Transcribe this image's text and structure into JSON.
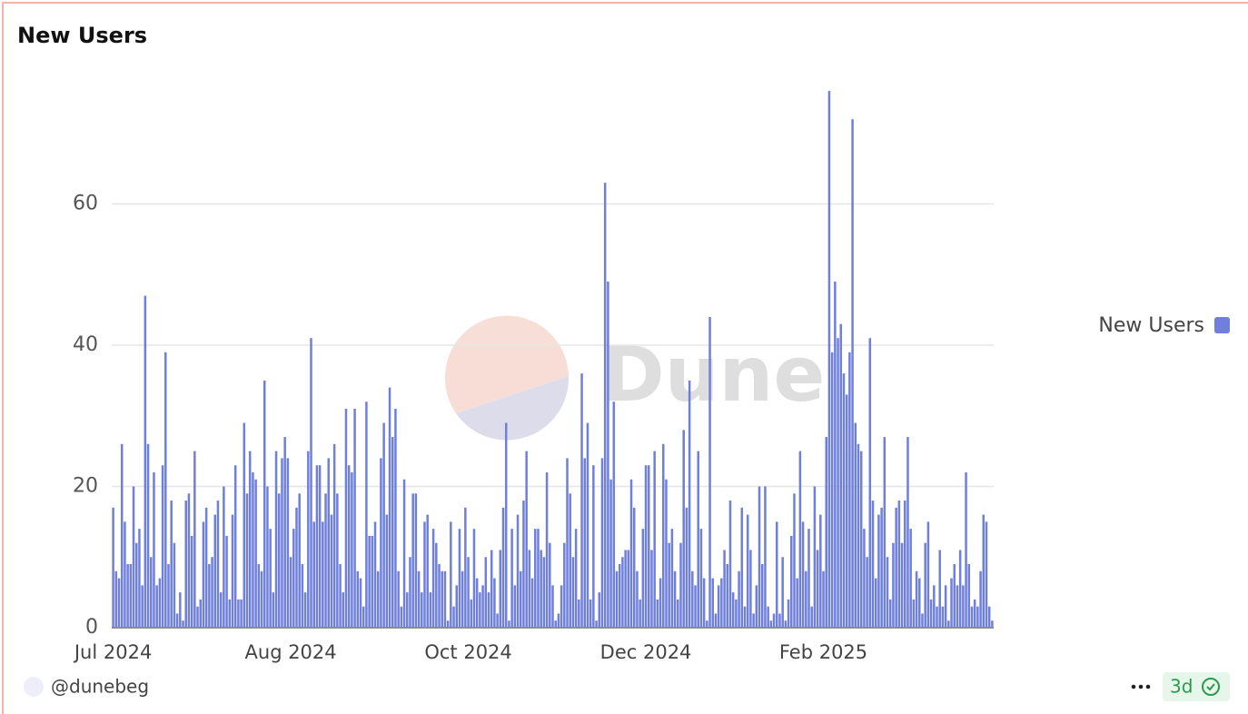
{
  "chart_data": {
    "type": "bar",
    "title": "New Users",
    "watermark": "Dune",
    "author": "@dunebeg",
    "refresh": "3d",
    "legend_position": "right",
    "grid": true,
    "series": [
      {
        "name": "New Users",
        "color": "#6f7fdc",
        "values": [
          17,
          8,
          7,
          26,
          15,
          9,
          9,
          20,
          12,
          14,
          6,
          47,
          26,
          10,
          22,
          6,
          7,
          23,
          39,
          9,
          18,
          12,
          2,
          5,
          1,
          18,
          19,
          13,
          25,
          3,
          4,
          15,
          17,
          9,
          10,
          16,
          18,
          5,
          20,
          13,
          4,
          16,
          23,
          4,
          4,
          29,
          19,
          25,
          22,
          21,
          9,
          8,
          35,
          20,
          14,
          5,
          25,
          19,
          24,
          27,
          24,
          10,
          14,
          17,
          19,
          9,
          5,
          25,
          41,
          15,
          23,
          23,
          15,
          19,
          24,
          16,
          26,
          19,
          9,
          5,
          31,
          23,
          22,
          31,
          8,
          7,
          3,
          32,
          13,
          13,
          15,
          8,
          24,
          29,
          16,
          34,
          27,
          31,
          8,
          3,
          21,
          5,
          10,
          19,
          19,
          8,
          5,
          15,
          16,
          5,
          14,
          12,
          9,
          8,
          8,
          1,
          15,
          3,
          6,
          14,
          8,
          17,
          10,
          4,
          14,
          7,
          5,
          6,
          10,
          5,
          11,
          7,
          2,
          11,
          17,
          29,
          1,
          14,
          6,
          16,
          8,
          18,
          25,
          11,
          7,
          14,
          14,
          11,
          10,
          22,
          12,
          6,
          1,
          2,
          6,
          12,
          24,
          19,
          10,
          14,
          4,
          36,
          24,
          29,
          4,
          23,
          1,
          5,
          24,
          63,
          49,
          21,
          32,
          8,
          9,
          10,
          11,
          11,
          21,
          17,
          8,
          4,
          14,
          23,
          23,
          11,
          25,
          4,
          7,
          26,
          21,
          12,
          14,
          8,
          4,
          12,
          28,
          17,
          35,
          8,
          6,
          25,
          14,
          7,
          1,
          44,
          7,
          2,
          6,
          7,
          11,
          9,
          18,
          5,
          4,
          8,
          17,
          3,
          16,
          11,
          2,
          6,
          20,
          9,
          20,
          3,
          1,
          2,
          15,
          2,
          10,
          1,
          4,
          13,
          19,
          7,
          25,
          15,
          8,
          14,
          3,
          20,
          11,
          16,
          8,
          27,
          76,
          39,
          49,
          41,
          43,
          36,
          33,
          39,
          72,
          29,
          26,
          25,
          14,
          10,
          41,
          18,
          7,
          16,
          17,
          27,
          10,
          4,
          12,
          17,
          18,
          12,
          18,
          27,
          14,
          4,
          8,
          7,
          2,
          12,
          15,
          4,
          6,
          3,
          11,
          3,
          6,
          1,
          7,
          9,
          6,
          11,
          6,
          22,
          9,
          3,
          4,
          3,
          8,
          16,
          15,
          3,
          1
        ]
      }
    ],
    "categories": [
      "Jul 2024",
      null,
      null,
      null,
      null,
      null,
      null,
      null,
      null,
      null,
      null,
      null,
      null,
      null,
      null,
      null,
      null,
      null,
      null,
      null,
      null,
      null,
      null,
      null,
      null,
      null,
      null,
      null,
      null,
      null,
      null,
      null,
      null,
      null,
      null,
      null,
      null,
      null,
      null,
      null,
      null,
      null,
      null,
      null,
      null,
      null,
      null,
      null,
      null,
      null,
      null,
      null,
      null,
      null,
      null,
      null,
      null,
      null,
      null,
      null,
      null,
      "Aug 2024",
      null,
      null,
      null,
      null,
      null,
      null,
      null,
      null,
      null,
      null,
      null,
      null,
      null,
      null,
      null,
      null,
      null,
      null,
      null,
      null,
      null,
      null,
      null,
      null,
      null,
      null,
      null,
      null,
      null,
      null,
      null,
      null,
      null,
      null,
      null,
      null,
      null,
      null,
      null,
      null,
      null,
      null,
      null,
      null,
      null,
      null,
      null,
      null,
      null,
      null,
      null,
      null,
      null,
      null,
      null,
      null,
      null,
      null,
      null,
      null,
      "Oct 2024",
      null,
      null,
      null,
      null,
      null,
      null,
      null,
      null,
      null,
      null,
      null,
      null,
      null,
      null,
      null,
      null,
      null,
      null,
      null,
      null,
      null,
      null,
      null,
      null,
      null,
      null,
      null,
      null,
      null,
      null,
      null,
      null,
      null,
      null,
      null,
      null,
      null,
      null,
      null,
      null,
      null,
      null,
      null,
      null,
      null,
      null,
      null,
      null,
      null,
      null,
      null,
      null,
      null,
      null,
      null,
      null,
      null,
      null,
      null,
      null,
      "Dec 2024",
      null,
      null,
      null,
      null,
      null,
      null,
      null,
      null,
      null,
      null,
      null,
      null,
      null,
      null,
      null,
      null,
      null,
      null,
      null,
      null,
      null,
      null,
      null,
      null,
      null,
      null,
      null,
      null,
      null,
      null,
      null,
      null,
      null,
      null,
      null,
      null,
      null,
      null,
      null,
      null,
      null,
      null,
      null,
      null,
      null,
      null,
      null,
      null,
      null,
      null,
      null,
      null,
      null,
      null,
      null,
      null,
      null,
      null,
      null,
      null,
      "Feb 2025",
      null,
      null,
      null,
      null,
      null,
      null,
      null,
      null,
      null,
      null,
      null,
      null,
      null,
      null,
      null,
      null,
      null,
      null,
      null,
      null,
      null,
      null,
      null,
      null,
      null,
      null,
      null,
      null,
      null,
      null,
      null,
      null,
      null,
      null,
      null,
      null,
      null,
      null,
      null,
      null,
      null,
      null,
      null,
      null,
      null,
      null,
      null,
      null,
      null,
      null,
      null,
      null,
      null,
      null,
      null,
      null,
      null,
      null
    ],
    "ylim": [
      0,
      80
    ],
    "yticks": [
      0,
      20,
      40,
      60
    ]
  }
}
